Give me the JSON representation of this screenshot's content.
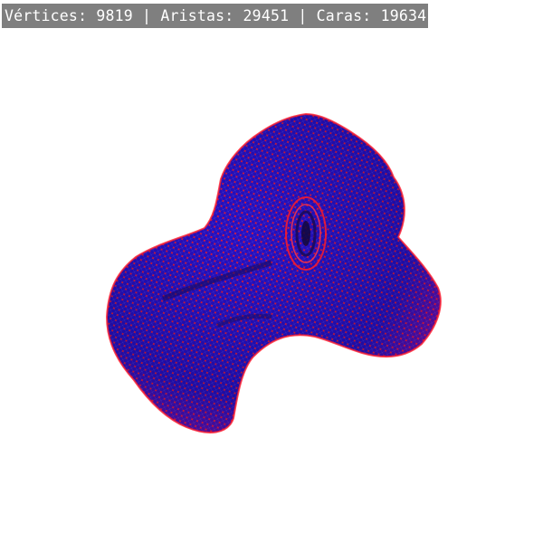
{
  "stats": {
    "vertices_label": "Vértices:",
    "vertices_value": "9819",
    "separator": "|",
    "edges_label": "Aristas:",
    "edges_value": "29451",
    "faces_label": "Caras:",
    "faces_value": "19634"
  },
  "colors": {
    "background": "#ffffff",
    "stats_background": "#7f7f7f",
    "stats_text": "#ffffff",
    "mesh_edges": "#2a10c8",
    "mesh_vertices": "#ff1a2a",
    "mesh_dark": "#1a0a55"
  }
}
